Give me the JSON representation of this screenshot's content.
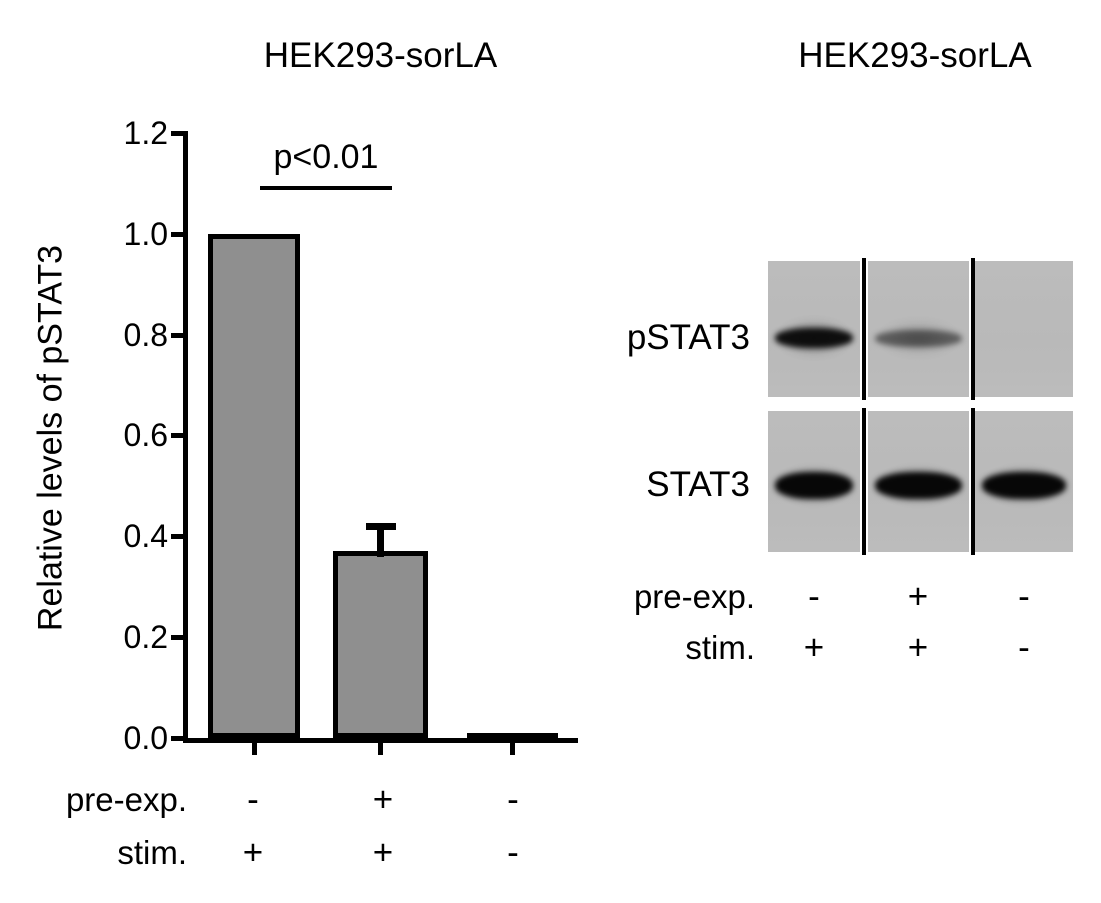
{
  "chart_data": {
    "type": "bar",
    "title": "HEK293-sorLA",
    "xlabel": "",
    "ylabel": "Relative levels of pSTAT3",
    "categories": [
      "pre-exp. -, stim. +",
      "pre-exp. +, stim. +",
      "pre-exp. -, stim. -"
    ],
    "values": [
      1.0,
      0.37,
      0.01
    ],
    "errors_plus": [
      0,
      0.05,
      0
    ],
    "ylim": [
      0,
      1.2
    ],
    "ytick_values": [
      0.0,
      0.2,
      0.4,
      0.6,
      0.8,
      1.0,
      1.2
    ],
    "ytick_labels": [
      "0.0",
      "0.2",
      "0.4",
      "0.6",
      "0.8",
      "1.0",
      "1.2"
    ],
    "grid": false,
    "legend": null,
    "bar_colors": [
      "#8f8f8f",
      "#8f8f8f",
      "#000000"
    ],
    "bar_outline_color": "#000000",
    "annotation": {
      "label": "p<0.01",
      "between_bars": [
        0,
        1
      ]
    },
    "condition_rows": [
      {
        "label": "pre-exp.",
        "values": [
          "-",
          "+",
          "-"
        ]
      },
      {
        "label": "stim.",
        "values": [
          "+",
          "+",
          "-"
        ]
      }
    ]
  },
  "right_panel": {
    "title": "HEK293-sorLA",
    "background_color": "#b9b9b9",
    "strips": [
      {
        "label": "pSTAT3",
        "band_intensities": [
          0.95,
          0.5,
          0
        ]
      },
      {
        "label": "STAT3",
        "band_intensities": [
          1,
          1,
          1
        ]
      }
    ],
    "condition_rows": [
      {
        "label": "pre-exp.",
        "values": [
          "-",
          "+",
          "-"
        ]
      },
      {
        "label": "stim.",
        "values": [
          "+",
          "+",
          "-"
        ]
      }
    ]
  }
}
